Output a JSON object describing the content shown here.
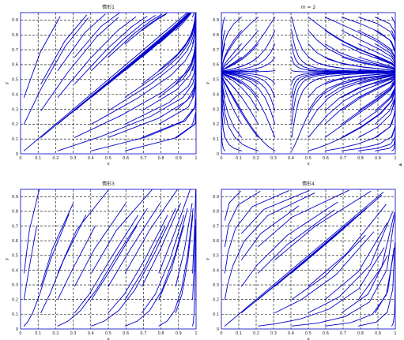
{
  "chart_data": [
    {
      "type": "line",
      "title": "情形1",
      "xlabel": "x",
      "ylabel": "y",
      "xlim": [
        0,
        1
      ],
      "ylim": [
        0,
        0.95
      ],
      "xticks": [
        "0",
        "0.1",
        "0.2",
        "0.3",
        "0.4",
        "0.5",
        "0.6",
        "0.7",
        "0.8",
        "0.9",
        "1"
      ],
      "yticks": [
        "0",
        "0.1",
        "0.2",
        "0.3",
        "0.4",
        "0.5",
        "0.6",
        "0.7",
        "0.8",
        "0.9"
      ],
      "grid": true,
      "field": "converge-top-right"
    },
    {
      "type": "line",
      "title": "m = 2",
      "xlabel": "x",
      "ylabel": "y",
      "xlim": [
        0,
        1
      ],
      "ylim": [
        0,
        0.95
      ],
      "xticks": [
        "0",
        "0.1",
        "0.2",
        "0.3",
        "0.4",
        "0.5",
        "0.6",
        "0.7",
        "0.8",
        "0.9",
        "1"
      ],
      "yticks": [
        "0",
        "0.1",
        "0.2",
        "0.3",
        "0.4",
        "0.5",
        "0.6",
        "0.7",
        "0.8",
        "0.9"
      ],
      "grid": true,
      "field": "saddle"
    },
    {
      "type": "line",
      "title": "情形3",
      "xlabel": "x",
      "ylabel": "y",
      "xlim": [
        0,
        1
      ],
      "ylim": [
        0,
        0.95
      ],
      "xticks": [
        "0",
        "0.1",
        "0.2",
        "0.3",
        "0.4",
        "0.5",
        "0.6",
        "0.7",
        "0.8",
        "0.9",
        "1"
      ],
      "yticks": [
        "0",
        "0.1",
        "0.2",
        "0.3",
        "0.4",
        "0.5",
        "0.6",
        "0.7",
        "0.8",
        "0.9"
      ],
      "grid": true,
      "field": "rise-to-top-right"
    },
    {
      "type": "line",
      "title": "情形4",
      "xlabel": "x",
      "ylabel": "y",
      "xlim": [
        0,
        1
      ],
      "ylim": [
        0,
        0.95
      ],
      "xticks": [
        "0",
        "0.1",
        "0.2",
        "0.3",
        "0.4",
        "0.5",
        "0.6",
        "0.7",
        "0.8",
        "0.9",
        "1"
      ],
      "yticks": [
        "0",
        "0.1",
        "0.2",
        "0.3",
        "0.4",
        "0.5",
        "0.6",
        "0.7",
        "0.8",
        "0.9"
      ],
      "grid": true,
      "field": "diverge-bottom-left"
    }
  ],
  "colors": {
    "trajectory": "#0000cc",
    "grid": "#000000",
    "background": "#ffffff"
  }
}
